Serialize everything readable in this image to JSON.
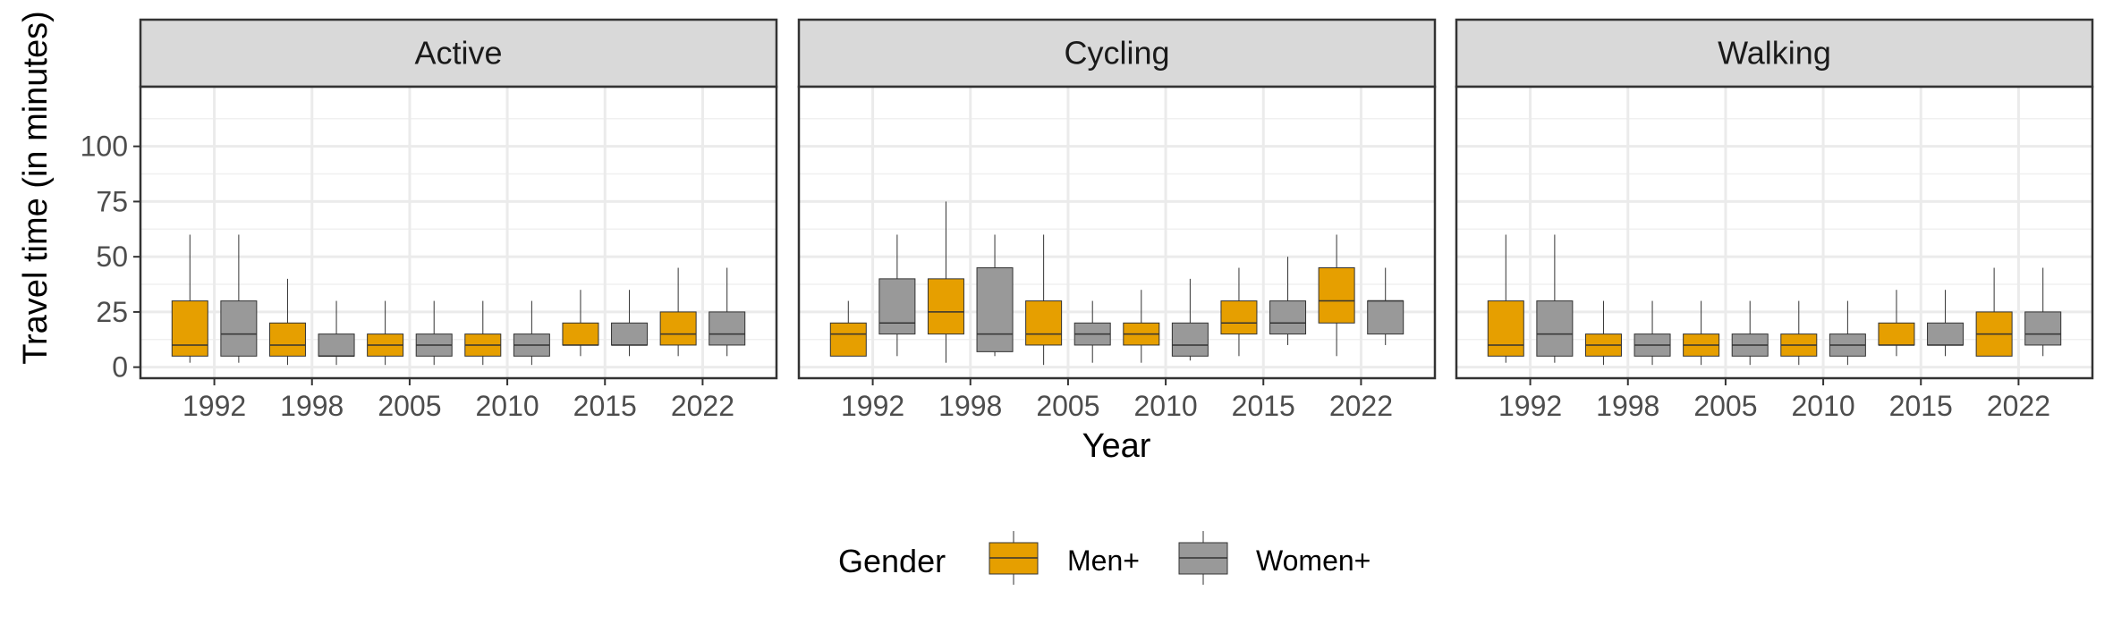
{
  "chart_data": {
    "type": "boxplot",
    "xlabel": "Year",
    "ylabel": "Travel time (in minutes)",
    "ylim": [
      -5,
      127
    ],
    "yticks": [
      0,
      25,
      50,
      75,
      100
    ],
    "xticks": [
      "1992",
      "1998",
      "2005",
      "2010",
      "2015",
      "2022"
    ],
    "legend": {
      "title": "Gender",
      "position": "bottom",
      "entries": [
        {
          "name": "Men+",
          "color": "#E69F00"
        },
        {
          "name": "Women+",
          "color": "#999999"
        }
      ]
    },
    "panels": [
      {
        "title": "Active",
        "boxes": [
          {
            "gender": "Men+",
            "low": 2,
            "q1": 5,
            "median": 10,
            "q3": 30,
            "high": 60
          },
          {
            "gender": "Women+",
            "low": 2,
            "q1": 5,
            "median": 15,
            "q3": 30,
            "high": 60
          },
          {
            "gender": "Men+",
            "low": 1,
            "q1": 5,
            "median": 10,
            "q3": 20,
            "high": 40
          },
          {
            "gender": "Women+",
            "low": 1,
            "q1": 5,
            "median": 5,
            "q3": 15,
            "high": 30
          },
          {
            "gender": "Men+",
            "low": 1,
            "q1": 5,
            "median": 10,
            "q3": 15,
            "high": 30
          },
          {
            "gender": "Women+",
            "low": 1,
            "q1": 5,
            "median": 10,
            "q3": 15,
            "high": 30
          },
          {
            "gender": "Men+",
            "low": 1,
            "q1": 5,
            "median": 10,
            "q3": 15,
            "high": 30
          },
          {
            "gender": "Women+",
            "low": 1,
            "q1": 5,
            "median": 10,
            "q3": 15,
            "high": 30
          },
          {
            "gender": "Men+",
            "low": 5,
            "q1": 10,
            "median": 10,
            "q3": 20,
            "high": 35
          },
          {
            "gender": "Women+",
            "low": 5,
            "q1": 10,
            "median": 10,
            "q3": 20,
            "high": 35
          },
          {
            "gender": "Men+",
            "low": 5,
            "q1": 10,
            "median": 15,
            "q3": 25,
            "high": 45
          },
          {
            "gender": "Women+",
            "low": 5,
            "q1": 10,
            "median": 15,
            "q3": 25,
            "high": 45
          }
        ]
      },
      {
        "title": "Cycling",
        "boxes": [
          {
            "gender": "Men+",
            "low": 5,
            "q1": 5,
            "median": 15,
            "q3": 20,
            "high": 30
          },
          {
            "gender": "Women+",
            "low": 5,
            "q1": 15,
            "median": 20,
            "q3": 40,
            "high": 60
          },
          {
            "gender": "Men+",
            "low": 2,
            "q1": 15,
            "median": 25,
            "q3": 40,
            "high": 75
          },
          {
            "gender": "Women+",
            "low": 5,
            "q1": 7,
            "median": 15,
            "q3": 45,
            "high": 60
          },
          {
            "gender": "Men+",
            "low": 1,
            "q1": 10,
            "median": 15,
            "q3": 30,
            "high": 60
          },
          {
            "gender": "Women+",
            "low": 2,
            "q1": 10,
            "median": 15,
            "q3": 20,
            "high": 30
          },
          {
            "gender": "Men+",
            "low": 2,
            "q1": 10,
            "median": 15,
            "q3": 20,
            "high": 35
          },
          {
            "gender": "Women+",
            "low": 3,
            "q1": 5,
            "median": 10,
            "q3": 20,
            "high": 40
          },
          {
            "gender": "Men+",
            "low": 5,
            "q1": 15,
            "median": 20,
            "q3": 30,
            "high": 45
          },
          {
            "gender": "Women+",
            "low": 10,
            "q1": 15,
            "median": 20,
            "q3": 30,
            "high": 50
          },
          {
            "gender": "Men+",
            "low": 5,
            "q1": 20,
            "median": 30,
            "q3": 45,
            "high": 60
          },
          {
            "gender": "Women+",
            "low": 10,
            "q1": 15,
            "median": 30,
            "q3": 30,
            "high": 45
          }
        ]
      },
      {
        "title": "Walking",
        "boxes": [
          {
            "gender": "Men+",
            "low": 2,
            "q1": 5,
            "median": 10,
            "q3": 30,
            "high": 60
          },
          {
            "gender": "Women+",
            "low": 2,
            "q1": 5,
            "median": 15,
            "q3": 30,
            "high": 60
          },
          {
            "gender": "Men+",
            "low": 1,
            "q1": 5,
            "median": 10,
            "q3": 15,
            "high": 30
          },
          {
            "gender": "Women+",
            "low": 1,
            "q1": 5,
            "median": 10,
            "q3": 15,
            "high": 30
          },
          {
            "gender": "Men+",
            "low": 1,
            "q1": 5,
            "median": 10,
            "q3": 15,
            "high": 30
          },
          {
            "gender": "Women+",
            "low": 1,
            "q1": 5,
            "median": 10,
            "q3": 15,
            "high": 30
          },
          {
            "gender": "Men+",
            "low": 1,
            "q1": 5,
            "median": 10,
            "q3": 15,
            "high": 30
          },
          {
            "gender": "Women+",
            "low": 1,
            "q1": 5,
            "median": 10,
            "q3": 15,
            "high": 30
          },
          {
            "gender": "Men+",
            "low": 5,
            "q1": 10,
            "median": 10,
            "q3": 20,
            "high": 35
          },
          {
            "gender": "Women+",
            "low": 5,
            "q1": 10,
            "median": 10,
            "q3": 20,
            "high": 35
          },
          {
            "gender": "Men+",
            "low": 5,
            "q1": 5,
            "median": 15,
            "q3": 25,
            "high": 45
          },
          {
            "gender": "Women+",
            "low": 5,
            "q1": 10,
            "median": 15,
            "q3": 25,
            "high": 45
          }
        ]
      }
    ]
  }
}
